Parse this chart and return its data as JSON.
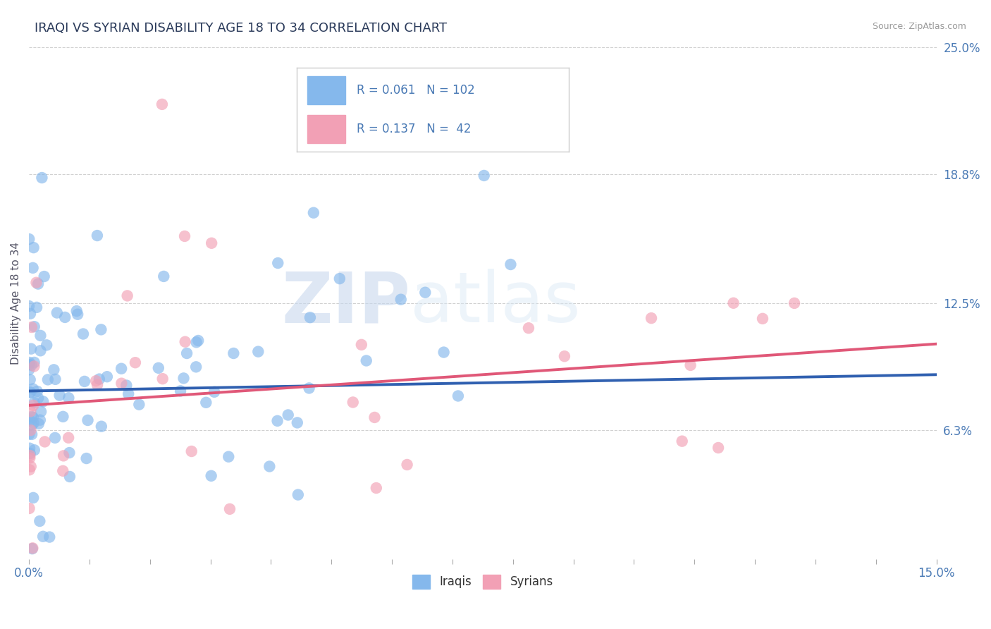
{
  "title": "IRAQI VS SYRIAN DISABILITY AGE 18 TO 34 CORRELATION CHART",
  "source": "Source: ZipAtlas.com",
  "ylabel_left": "Disability Age 18 to 34",
  "xlim": [
    0.0,
    0.15
  ],
  "ylim": [
    0.0,
    0.25
  ],
  "ytick_right_values": [
    0.063,
    0.125,
    0.188,
    0.25
  ],
  "ytick_right_labels": [
    "6.3%",
    "12.5%",
    "18.8%",
    "25.0%"
  ],
  "iraqis_R": 0.061,
  "iraqis_N": 102,
  "syrians_R": 0.137,
  "syrians_N": 42,
  "iraqis_color": "#85b8ec",
  "syrians_color": "#f2a0b5",
  "iraqis_line_color": "#3060b0",
  "syrians_line_color": "#e05878",
  "legend_label_iraqis": "Iraqis",
  "legend_label_syrians": "Syrians",
  "background_color": "#ffffff",
  "grid_color": "#cccccc",
  "title_color": "#2a3a5a",
  "axis_label_color": "#4a7ab5",
  "watermark_zip": "ZIP",
  "watermark_atlas": "atlas",
  "seed": 1234
}
